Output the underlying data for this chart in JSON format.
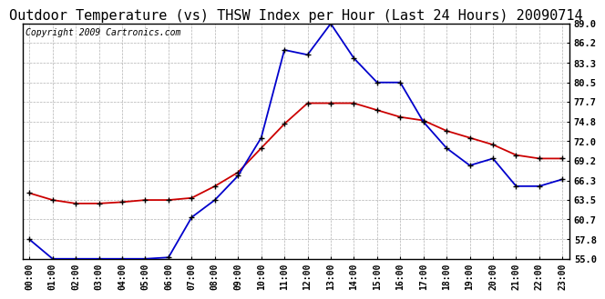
{
  "title": "Outdoor Temperature (vs) THSW Index per Hour (Last 24 Hours) 20090714",
  "copyright": "Copyright 2009 Cartronics.com",
  "hours": [
    "00:00",
    "01:00",
    "02:00",
    "03:00",
    "04:00",
    "05:00",
    "06:00",
    "07:00",
    "08:00",
    "09:00",
    "10:00",
    "11:00",
    "12:00",
    "13:00",
    "14:00",
    "15:00",
    "16:00",
    "17:00",
    "18:00",
    "19:00",
    "20:00",
    "21:00",
    "22:00",
    "23:00"
  ],
  "temp": [
    64.5,
    63.5,
    63.0,
    63.0,
    63.2,
    63.5,
    63.5,
    63.8,
    65.5,
    67.5,
    71.0,
    74.5,
    77.5,
    77.5,
    77.5,
    76.5,
    75.5,
    75.0,
    73.5,
    72.5,
    71.5,
    70.0,
    69.5,
    69.5
  ],
  "thsw": [
    57.8,
    55.0,
    55.0,
    55.0,
    55.0,
    55.0,
    55.2,
    61.0,
    63.5,
    67.0,
    72.5,
    85.2,
    84.5,
    89.0,
    84.0,
    80.5,
    80.5,
    74.8,
    71.0,
    68.5,
    69.5,
    65.5,
    65.5,
    66.5
  ],
  "ylim": [
    55.0,
    89.0
  ],
  "yticks": [
    55.0,
    57.8,
    60.7,
    63.5,
    66.3,
    69.2,
    72.0,
    74.8,
    77.7,
    80.5,
    83.3,
    86.2,
    89.0
  ],
  "temp_color": "#cc0000",
  "thsw_color": "#0000cc",
  "bg_color": "#ffffff",
  "grid_color": "#aaaaaa",
  "title_fontsize": 11,
  "copyright_fontsize": 7
}
